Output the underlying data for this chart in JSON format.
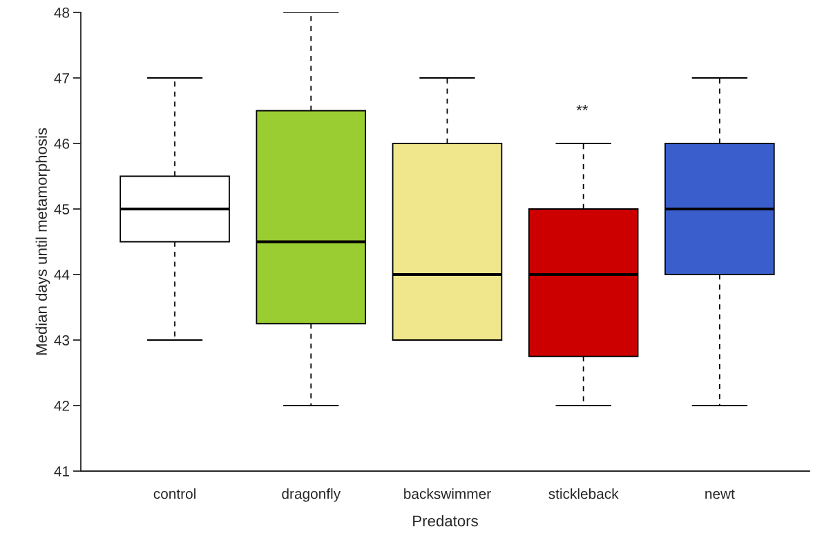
{
  "chart_data": {
    "type": "box",
    "xlabel": "Predators",
    "ylabel": "Median days until metamorphosis",
    "categories": [
      "control",
      "dragonfly",
      "backswimmer",
      "stickleback",
      "newt"
    ],
    "colors": [
      "#ffffff",
      "#9acd32",
      "#f0e68c",
      "#cd0000",
      "#3a5fcd"
    ],
    "boxes": [
      {
        "low": 43,
        "q1": 44.5,
        "median": 45,
        "q3": 45.5,
        "high": 47
      },
      {
        "low": 42,
        "q1": 43.25,
        "median": 44.5,
        "q3": 46.5,
        "high": 48
      },
      {
        "low": 43,
        "q1": 43,
        "median": 44,
        "q3": 46,
        "high": 47
      },
      {
        "low": 42,
        "q1": 42.75,
        "median": 44,
        "q3": 45,
        "high": 46
      },
      {
        "low": 42,
        "q1": 44,
        "median": 45,
        "q3": 46,
        "high": 47
      }
    ],
    "ylim": [
      41,
      48
    ],
    "yticks": [
      41,
      42,
      43,
      44,
      45,
      46,
      47,
      48
    ],
    "annotations": [
      "**"
    ],
    "grid": false,
    "legend": false
  }
}
